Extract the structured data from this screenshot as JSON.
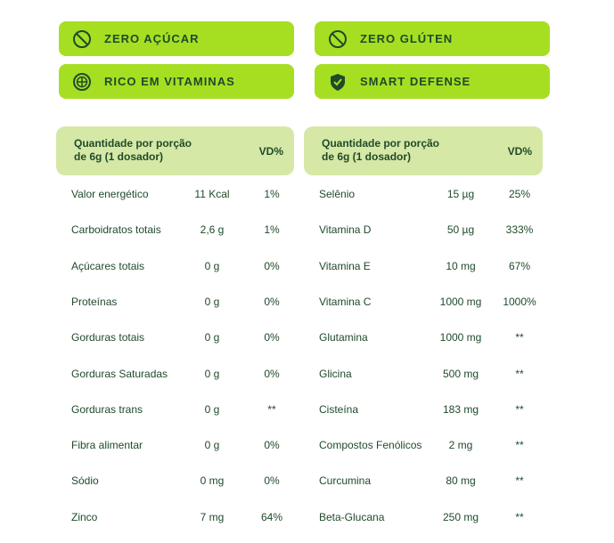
{
  "badges": [
    {
      "label": "ZERO AÇÚCAR"
    },
    {
      "label": "ZERO GLÚTEN"
    },
    {
      "label": "RICO EM VITAMINAS"
    },
    {
      "label": "SMART DEFENSE"
    }
  ],
  "tables": [
    {
      "header": {
        "portion": [
          "Quantidade por porção",
          "de 6g (1 dosador)"
        ],
        "vd": "VD%"
      },
      "rows": [
        [
          "Valor energético",
          "11 Kcal",
          "1%"
        ],
        [
          "Carboidratos totais",
          "2,6 g",
          "1%"
        ],
        [
          "Açúcares totais",
          "0 g",
          "0%"
        ],
        [
          "Proteínas",
          "0 g",
          "0%"
        ],
        [
          "Gorduras totais",
          "0 g",
          "0%"
        ],
        [
          "Gorduras Saturadas",
          "0 g",
          "0%"
        ],
        [
          "Gorduras trans",
          "0 g",
          "**"
        ],
        [
          "Fibra alimentar",
          "0 g",
          "0%"
        ],
        [
          "Sódio",
          "0 mg",
          "0%"
        ],
        [
          "Zinco",
          "7 mg",
          "64%"
        ]
      ]
    },
    {
      "header": {
        "portion": [
          "Quantidade por porção",
          "de 6g (1 dosador)"
        ],
        "vd": "VD%"
      },
      "rows": [
        [
          "Selênio",
          "15 µg",
          "25%"
        ],
        [
          "Vitamina D",
          "50 µg",
          "333%"
        ],
        [
          "Vitamina E",
          "10 mg",
          "67%"
        ],
        [
          "Vitamina C",
          "1000 mg",
          "1000%"
        ],
        [
          "Glutamina",
          "1000 mg",
          "**"
        ],
        [
          "Glicina",
          "500 mg",
          "**"
        ],
        [
          "Cisteína",
          "183 mg",
          "**"
        ],
        [
          "Compostos Fenólicos",
          "2 mg",
          "**"
        ],
        [
          "Curcumina",
          "80 mg",
          "**"
        ],
        [
          "Beta-Glucana",
          "250 mg",
          "**"
        ]
      ]
    }
  ]
}
